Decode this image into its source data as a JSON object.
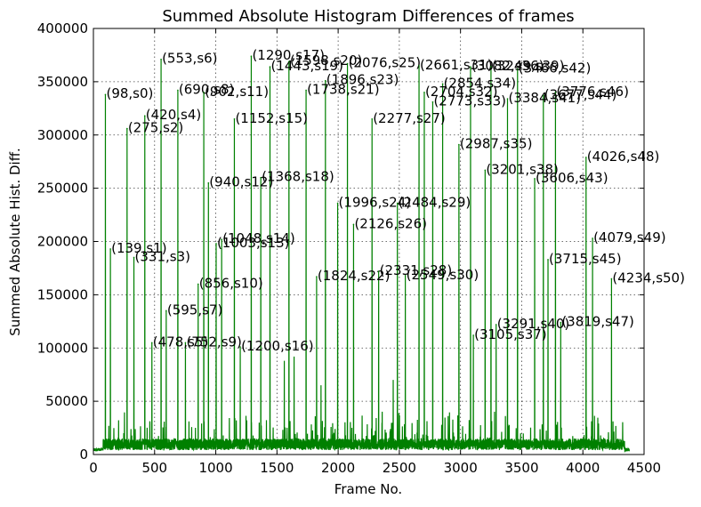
{
  "chart_data": {
    "type": "line",
    "title": "Summed Absolute Histogram Differences of frames",
    "xlabel": "Frame No.",
    "ylabel": "Summed Absolute Hist. Diff.",
    "xlim": [
      0,
      4500
    ],
    "ylim": [
      0,
      400000
    ],
    "xticks": [
      0,
      500,
      1000,
      1500,
      2000,
      2500,
      3000,
      3500,
      4000,
      4500
    ],
    "yticks": [
      0,
      50000,
      100000,
      150000,
      200000,
      250000,
      300000,
      350000,
      400000
    ],
    "grid": true,
    "line_color": "#008000",
    "frame_count": 4380,
    "baseline_level": 12000,
    "peaks": [
      {
        "x": 98,
        "y": 338000,
        "label": "(98,s0)"
      },
      {
        "x": 139,
        "y": 193000,
        "label": "(139,s1)"
      },
      {
        "x": 275,
        "y": 306000,
        "label": "(275,s2)"
      },
      {
        "x": 331,
        "y": 185000,
        "label": "(331,s3)"
      },
      {
        "x": 420,
        "y": 318000,
        "label": "(420,s4)"
      },
      {
        "x": 478,
        "y": 105000,
        "label": "(478,s5)"
      },
      {
        "x": 553,
        "y": 371000,
        "label": "(553,s6)"
      },
      {
        "x": 595,
        "y": 135000,
        "label": "(595,s7)"
      },
      {
        "x": 690,
        "y": 342000,
        "label": "(690,s8)"
      },
      {
        "x": 752,
        "y": 105000,
        "label": "(752,s9)"
      },
      {
        "x": 856,
        "y": 160000,
        "label": "(856,s10)"
      },
      {
        "x": 902,
        "y": 340000,
        "label": "(902,s11)"
      },
      {
        "x": 940,
        "y": 255000,
        "label": "(940,s12)"
      },
      {
        "x": 1003,
        "y": 198000,
        "label": "(1003,s13)"
      },
      {
        "x": 1048,
        "y": 202000,
        "label": "(1048,s14)"
      },
      {
        "x": 1152,
        "y": 315000,
        "label": "(1152,s15)"
      },
      {
        "x": 1200,
        "y": 101000,
        "label": "(1200,s16)"
      },
      {
        "x": 1290,
        "y": 374000,
        "label": "(1290,s17)"
      },
      {
        "x": 1368,
        "y": 260000,
        "label": "(1368,s18)"
      },
      {
        "x": 1443,
        "y": 364000,
        "label": "(1443,s19)"
      },
      {
        "x": 1598,
        "y": 369000,
        "label": "(1598,s20)"
      },
      {
        "x": 1738,
        "y": 342000,
        "label": "(1738,s21)"
      },
      {
        "x": 1824,
        "y": 167000,
        "label": "(1824,s22)"
      },
      {
        "x": 1896,
        "y": 351000,
        "label": "(1896,s23)"
      },
      {
        "x": 1996,
        "y": 236000,
        "label": "(1996,s24)"
      },
      {
        "x": 2076,
        "y": 367000,
        "label": "(2076,s25)"
      },
      {
        "x": 2126,
        "y": 216000,
        "label": "(2126,s26)"
      },
      {
        "x": 2277,
        "y": 315000,
        "label": "(2277,s27)"
      },
      {
        "x": 2331,
        "y": 172000,
        "label": "(2331,s28)"
      },
      {
        "x": 2484,
        "y": 236000,
        "label": "(2484,s29)"
      },
      {
        "x": 2549,
        "y": 168000,
        "label": "(2549,s30)"
      },
      {
        "x": 2661,
        "y": 365000,
        "label": "(2661,s31)"
      },
      {
        "x": 2704,
        "y": 340000,
        "label": "(2704,s32)"
      },
      {
        "x": 2773,
        "y": 331000,
        "label": "(2773,s33)"
      },
      {
        "x": 2854,
        "y": 348000,
        "label": "(2854,s34)"
      },
      {
        "x": 2987,
        "y": 291000,
        "label": "(2987,s35)"
      },
      {
        "x": 3082,
        "y": 364000,
        "label": "(3082,s36)"
      },
      {
        "x": 3105,
        "y": 112000,
        "label": "(3105,s37)"
      },
      {
        "x": 3201,
        "y": 267000,
        "label": "(3201,s38)"
      },
      {
        "x": 3249,
        "y": 364000,
        "label": "(3249,s39)"
      },
      {
        "x": 3291,
        "y": 122000,
        "label": "(3291,s40)"
      },
      {
        "x": 3384,
        "y": 334000,
        "label": "(3384,s41)"
      },
      {
        "x": 3466,
        "y": 362000,
        "label": "(3466,s42)"
      },
      {
        "x": 3606,
        "y": 259000,
        "label": "(3606,s43)"
      },
      {
        "x": 3677,
        "y": 337000,
        "label": "(3677,s44)"
      },
      {
        "x": 3715,
        "y": 183000,
        "label": "(3715,s45)"
      },
      {
        "x": 3776,
        "y": 340000,
        "label": "(3776,s46)"
      },
      {
        "x": 3819,
        "y": 124000,
        "label": "(3819,s47)"
      },
      {
        "x": 4026,
        "y": 279000,
        "label": "(4026,s48)"
      },
      {
        "x": 4079,
        "y": 203000,
        "label": "(4079,s49)"
      },
      {
        "x": 4234,
        "y": 165000,
        "label": "(4234,s50)"
      }
    ]
  }
}
